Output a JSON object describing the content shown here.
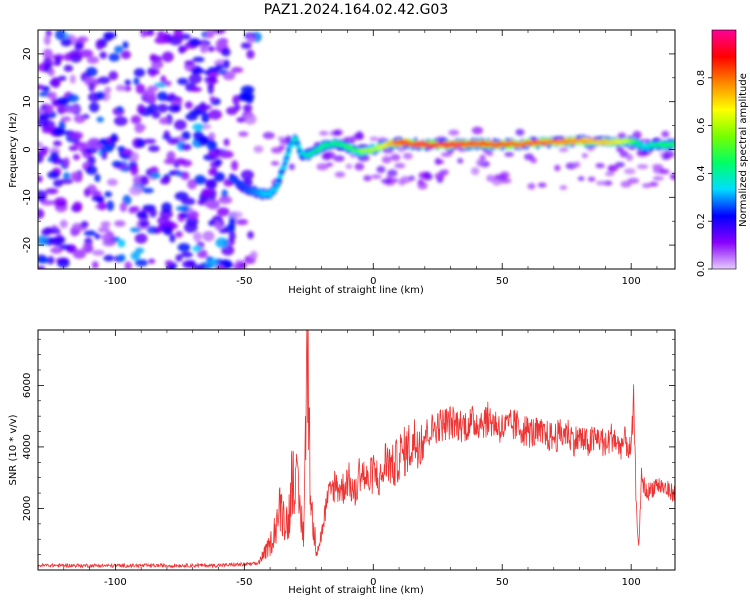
{
  "title": "PAZ1.2024.164.02.42.G03",
  "chart_data": [
    {
      "type": "heatmap",
      "xlabel": "Height of straight line (km)",
      "ylabel": "Frequency (Hz)",
      "xlim": [
        -130,
        117
      ],
      "ylim": [
        -25,
        25
      ],
      "x_ticks": [
        -100,
        -50,
        0,
        50,
        100
      ],
      "y_ticks": [
        -20,
        -10,
        0,
        10,
        20
      ],
      "grid": false,
      "colormap": "hsv-like (light violet to magenta)",
      "colorbar": {
        "label": "Normalized spectral amplitude",
        "range": [
          0,
          1
        ],
        "ticks": [
          0.0,
          0.2,
          0.4,
          0.6,
          0.8
        ],
        "colors": [
          "#e6ccff",
          "#8800ff",
          "#0000ff",
          "#00ddff",
          "#00ff66",
          "#77ff00",
          "#ffff00",
          "#ff8800",
          "#ff0000",
          "#ff0099"
        ]
      },
      "ridge": {
        "name": "",
        "x": [
          -55,
          -50,
          -45,
          -41,
          -38,
          -35,
          -32,
          -30,
          -28,
          -25,
          -20,
          -15,
          -10,
          -5,
          0,
          5,
          10,
          20,
          30,
          40,
          50,
          60,
          70,
          80,
          90,
          100,
          105,
          110,
          117
        ],
        "y": [
          -6,
          -8,
          -9,
          -9.5,
          -8.5,
          -4,
          1,
          2.5,
          -1,
          -1,
          0.5,
          1.5,
          0.5,
          -0.5,
          0,
          1,
          1.5,
          1,
          1,
          1.2,
          1,
          1.3,
          1.6,
          1.8,
          1.5,
          1.8,
          0.5,
          1,
          1
        ],
        "amplitude": [
          0.3,
          0.3,
          0.35,
          0.4,
          0.4,
          0.4,
          0.4,
          0.45,
          0.4,
          0.45,
          0.5,
          0.5,
          0.55,
          0.6,
          0.6,
          0.7,
          0.9,
          0.95,
          0.95,
          0.9,
          0.9,
          0.85,
          0.85,
          0.8,
          0.75,
          0.6,
          0.4,
          0.5,
          0.55
        ]
      },
      "noise_region": {
        "x_range": [
          -130,
          -45
        ],
        "amplitude": [
          0.05,
          0.3
        ]
      }
    },
    {
      "type": "line",
      "xlabel": "Height of straight line (km)",
      "ylabel": "SNR (10 * v/v)",
      "xlim": [
        -130,
        117
      ],
      "ylim": [
        0,
        7800
      ],
      "x_ticks": [
        -100,
        -50,
        0,
        50,
        100
      ],
      "y_ticks": [
        2000,
        4000,
        6000
      ],
      "grid": false,
      "series": [
        {
          "name": "",
          "color": "#ee3333",
          "x": [
            -130,
            -100,
            -60,
            -45,
            -40,
            -36,
            -33,
            -31,
            -29,
            -27,
            -25.5,
            -24,
            -22,
            -20,
            -18,
            -15,
            -12,
            -10,
            -7,
            -5,
            -2,
            0,
            3,
            5,
            8,
            10,
            13,
            15,
            20,
            25,
            30,
            35,
            40,
            45,
            50,
            55,
            60,
            65,
            70,
            75,
            78,
            80,
            83,
            85,
            88,
            90,
            93,
            95,
            98,
            100,
            101,
            102,
            103,
            104,
            106,
            110,
            114,
            117
          ],
          "y": [
            150,
            140,
            150,
            200,
            800,
            2000,
            1500,
            3500,
            2200,
            1200,
            7600,
            1800,
            700,
            1200,
            2200,
            2800,
            2600,
            3000,
            2400,
            3300,
            2800,
            3200,
            2900,
            3600,
            3300,
            3700,
            3900,
            4100,
            4400,
            4700,
            4800,
            4700,
            4800,
            4900,
            4600,
            4700,
            4500,
            4400,
            4300,
            4500,
            4200,
            4300,
            4100,
            4200,
            4300,
            4000,
            4400,
            4000,
            4200,
            3800,
            5500,
            2000,
            700,
            3000,
            2500,
            2800,
            2600,
            2500
          ]
        }
      ]
    }
  ]
}
